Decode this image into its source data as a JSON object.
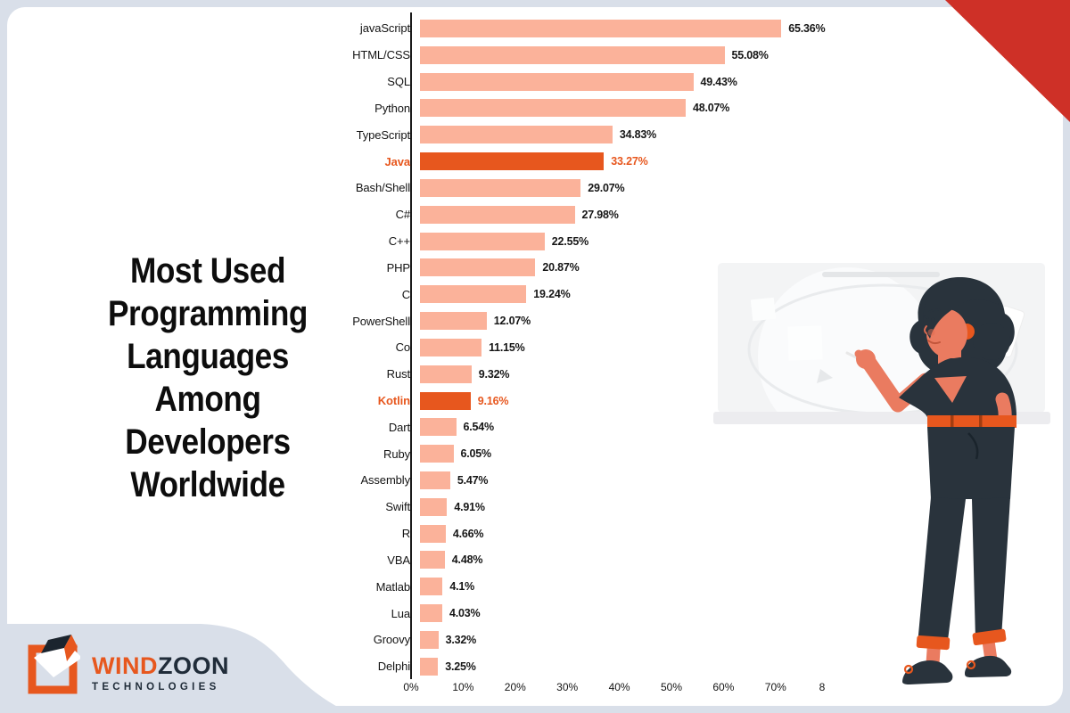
{
  "page": {
    "background_color": "#d9dfe9",
    "card_color": "#ffffff",
    "corner_triangle_color": "#ce3027"
  },
  "title": {
    "text": "Most Used\nProgramming\nLanguages\nAmong Developers\nWorldwide"
  },
  "logo": {
    "brand_primary": "WIND",
    "brand_secondary": "ZOON",
    "subtitle": "TECHNOLOGIES",
    "orange": "#e7571e",
    "navy": "#202c39"
  },
  "chart_data": {
    "type": "bar",
    "orientation": "horizontal",
    "title": "Most Used Programming Languages Among Developers Worldwide",
    "xlabel": "",
    "ylabel": "",
    "xlim": [
      0,
      80
    ],
    "grid": false,
    "bar_color": "#fbb29a",
    "highlight_color": "#e7571e",
    "x_ticks": [
      "0%",
      "10%",
      "20%",
      "30%",
      "40%",
      "50%",
      "60%",
      "70%",
      "8"
    ],
    "categories": [
      "javaScript",
      "HTML/CSS",
      "SQL",
      "Python",
      "TypeScript",
      "Java",
      "Bash/Shell",
      "C#",
      "C++",
      "PHP",
      "C",
      "PowerShell",
      "Co",
      "Rust",
      "Kotlin",
      "Dart",
      "Ruby",
      "Assembly",
      "Swift",
      "R",
      "VBA",
      "Matlab",
      "Lua",
      "Groovy",
      "Delphi"
    ],
    "values": [
      65.36,
      55.08,
      49.43,
      48.07,
      34.83,
      33.27,
      29.07,
      27.98,
      22.55,
      20.87,
      19.24,
      12.07,
      11.15,
      9.32,
      9.16,
      6.54,
      6.05,
      5.47,
      4.91,
      4.66,
      4.48,
      4.1,
      4.03,
      3.32,
      3.25
    ],
    "rows": [
      {
        "label": "javaScript",
        "value": 65.36,
        "display": "65.36%",
        "highlight": false
      },
      {
        "label": "HTML/CSS",
        "value": 55.08,
        "display": "55.08%",
        "highlight": false
      },
      {
        "label": "SQL",
        "value": 49.43,
        "display": "49.43%",
        "highlight": false
      },
      {
        "label": "Python",
        "value": 48.07,
        "display": "48.07%",
        "highlight": false
      },
      {
        "label": "TypeScript",
        "value": 34.83,
        "display": "34.83%",
        "highlight": false
      },
      {
        "label": "Java",
        "value": 33.27,
        "display": "33.27%",
        "highlight": true
      },
      {
        "label": "Bash/Shell",
        "value": 29.07,
        "display": "29.07%",
        "highlight": false
      },
      {
        "label": "C#",
        "value": 27.98,
        "display": "27.98%",
        "highlight": false
      },
      {
        "label": "C++",
        "value": 22.55,
        "display": "22.55%",
        "highlight": false
      },
      {
        "label": "PHP",
        "value": 20.87,
        "display": "20.87%",
        "highlight": false
      },
      {
        "label": "C",
        "value": 19.24,
        "display": "19.24%",
        "highlight": false
      },
      {
        "label": "PowerShell",
        "value": 12.07,
        "display": "12.07%",
        "highlight": false
      },
      {
        "label": "Co",
        "value": 11.15,
        "display": "11.15%",
        "highlight": false
      },
      {
        "label": "Rust",
        "value": 9.32,
        "display": "9.32%",
        "highlight": false
      },
      {
        "label": "Kotlin",
        "value": 9.16,
        "display": "9.16%",
        "highlight": true
      },
      {
        "label": "Dart",
        "value": 6.54,
        "display": "6.54%",
        "highlight": false
      },
      {
        "label": "Ruby",
        "value": 6.05,
        "display": "6.05%",
        "highlight": false
      },
      {
        "label": "Assembly",
        "value": 5.47,
        "display": "5.47%",
        "highlight": false
      },
      {
        "label": "Swift",
        "value": 4.91,
        "display": "4.91%",
        "highlight": false
      },
      {
        "label": "R",
        "value": 4.66,
        "display": "4.66%",
        "highlight": false
      },
      {
        "label": "VBA",
        "value": 4.48,
        "display": "4.48%",
        "highlight": false
      },
      {
        "label": "Matlab",
        "value": 4.1,
        "display": "4.1%",
        "highlight": false
      },
      {
        "label": "Lua",
        "value": 4.03,
        "display": "4.03%",
        "highlight": false
      },
      {
        "label": "Groovy",
        "value": 3.32,
        "display": "3.32%",
        "highlight": false
      },
      {
        "label": "Delphi",
        "value": 3.25,
        "display": "3.25%",
        "highlight": false
      }
    ]
  },
  "illustration": {
    "description": "woman with dark hair presenting at a whiteboard",
    "skin_color": "#ea7b60",
    "hair_color": "#29333c",
    "outfit_color": "#29333c",
    "accent_color": "#e7571e",
    "board_color": "#f3f4f5"
  }
}
